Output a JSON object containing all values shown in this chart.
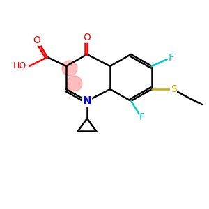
{
  "background_color": "#ffffff",
  "atom_colors": {
    "O": "#ff0000",
    "N": "#0000cd",
    "F": "#00cccc",
    "S": "#ccaa00",
    "C": "#000000"
  },
  "bond_color": "#000000",
  "highlight_color": "#ff8888"
}
